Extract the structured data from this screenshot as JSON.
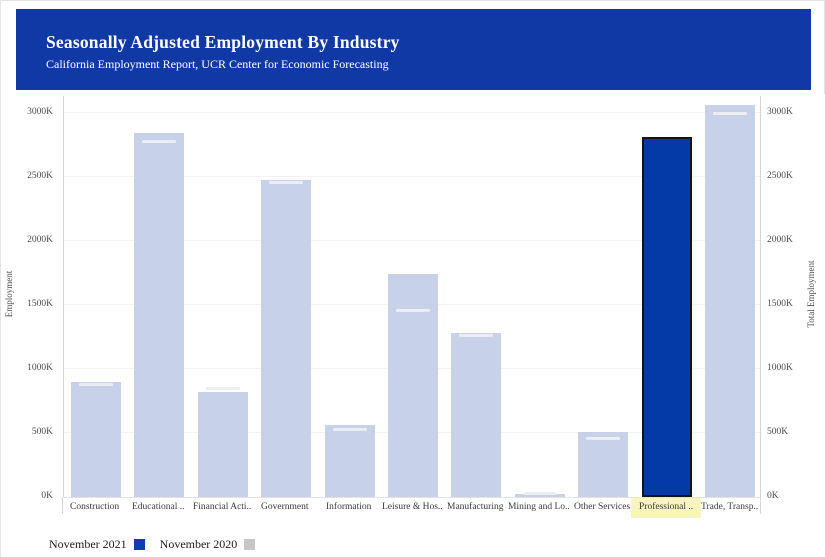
{
  "header": {
    "title": "Seasonally Adjusted Employment By Industry",
    "subtitle": "California Employment Report, UCR Center for Economic Forecasting",
    "background_color": "#1139a6"
  },
  "chart_data": {
    "type": "bar",
    "title": "Seasonally Adjusted Employment By Industry",
    "categories": [
      "Construction",
      "Educational ..",
      "Financial Acti..",
      "Government",
      "Information",
      "Leisure & Hos..",
      "Manufacturing",
      "Mining and Lo..",
      "Other Services",
      "Professional ..",
      "Trade, Transp.."
    ],
    "series": [
      {
        "name": "November 2021",
        "mark": "bar",
        "color": "#c7d1e7",
        "values_k": [
          900,
          2845,
          820,
          2480,
          560,
          1740,
          1285,
          22,
          505,
          2810,
          3060
        ]
      },
      {
        "name": "November 2020",
        "mark": "tick",
        "color": "#eceef3",
        "values_k": [
          875,
          2770,
          845,
          2450,
          525,
          1455,
          1260,
          20,
          455,
          null,
          2990
        ]
      }
    ],
    "highlighted_category": "Professional ..",
    "highlight_bar_color": "#0439a8",
    "highlight_label_bg": "#f7f5bb",
    "y_axis": {
      "label": "Employment",
      "ticks_k": [
        0,
        500,
        1000,
        1500,
        2000,
        2500,
        3000
      ],
      "suffix": "K",
      "max_k": 3000
    },
    "y2_axis": {
      "label": "Total Employment"
    },
    "grid": true,
    "legend_position": "bottom-left"
  },
  "legend": {
    "items": [
      {
        "label": "November 2021",
        "color": "#0b3cb0"
      },
      {
        "label": "November 2020",
        "color": "#c6c6c6"
      }
    ]
  }
}
